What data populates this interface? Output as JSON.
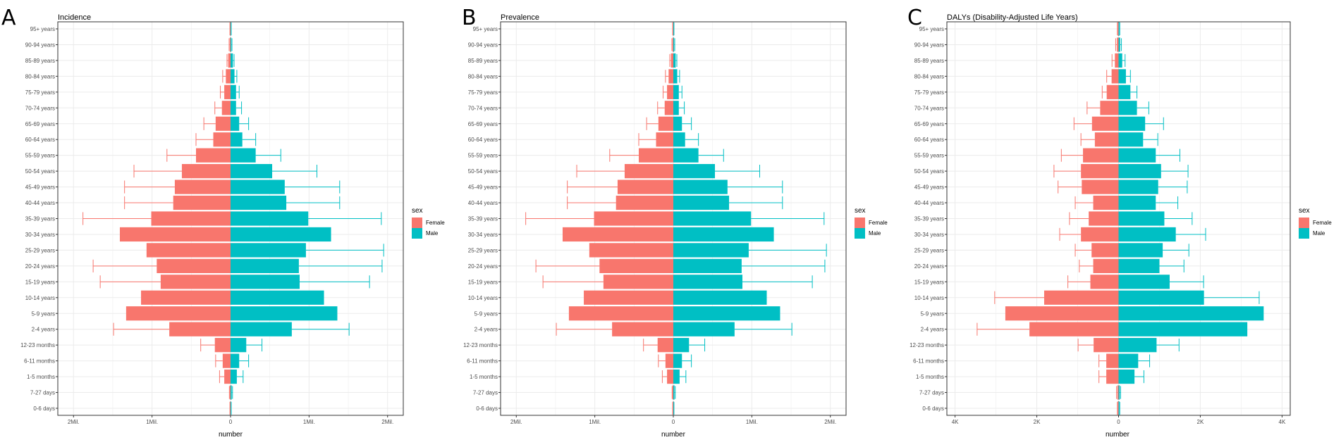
{
  "colors": {
    "female": "#F8766D",
    "male": "#00BFC4",
    "grid": "#ebebeb",
    "panel_border": "#333333"
  },
  "categories": [
    "95+ years",
    "90-94 years",
    "85-89 years",
    "80-84 years",
    "75-79 years",
    "70-74 years",
    "65-69 years",
    "60-64 years",
    "55-59 years",
    "50-54 years",
    "45-49 years",
    "40-44 years",
    "35-39 years",
    "30-34 years",
    "25-29 years",
    "20-24 years",
    "15-19 years",
    "10-14 years",
    "5-9 years",
    "2-4 years",
    "12-23 months",
    "6-11 months",
    "1-5 months",
    "7-27 days",
    "0-6 days"
  ],
  "chart_data": [
    {
      "type": "bar",
      "orientation": "horizontal-pyramid",
      "panel": "A",
      "title": "Incidence",
      "xlabel": "number",
      "xlim": [
        -2200000,
        2200000
      ],
      "xticks": [
        -2000000,
        -1000000,
        0,
        1000000,
        2000000
      ],
      "xtick_labels": [
        "2Mil.",
        "1Mil.",
        "0",
        "1Mil.",
        "2Mil."
      ],
      "legend_title": "sex",
      "legend_labels": [
        "Female",
        "Male"
      ],
      "series": [
        {
          "name": "Female",
          "values": [
            5000,
            10000,
            30000,
            60000,
            80000,
            110000,
            190000,
            220000,
            440000,
            620000,
            710000,
            730000,
            1010000,
            1410000,
            1070000,
            940000,
            890000,
            1140000,
            1330000,
            780000,
            200000,
            100000,
            80000,
            10000,
            5000
          ],
          "upper": [
            8000,
            18000,
            45000,
            100000,
            130000,
            200000,
            340000,
            440000,
            810000,
            1230000,
            1350000,
            1350000,
            1880000,
            1410000,
            1070000,
            1750000,
            1660000,
            1140000,
            1330000,
            1490000,
            380000,
            190000,
            140000,
            15000,
            8000
          ]
        },
        {
          "name": "Male",
          "values": [
            5000,
            10000,
            30000,
            50000,
            70000,
            70000,
            110000,
            150000,
            320000,
            530000,
            690000,
            710000,
            990000,
            1280000,
            960000,
            870000,
            880000,
            1190000,
            1360000,
            780000,
            200000,
            110000,
            80000,
            15000,
            5000
          ],
          "upper": [
            8000,
            18000,
            45000,
            80000,
            110000,
            140000,
            230000,
            320000,
            640000,
            1100000,
            1390000,
            1390000,
            1920000,
            1280000,
            1950000,
            1930000,
            1770000,
            1190000,
            1360000,
            1510000,
            400000,
            230000,
            160000,
            25000,
            8000
          ]
        }
      ]
    },
    {
      "type": "bar",
      "orientation": "horizontal-pyramid",
      "panel": "B",
      "title": "Prevalence",
      "xlabel": "number",
      "xlim": [
        -2200000,
        2200000
      ],
      "xticks": [
        -2000000,
        -1000000,
        0,
        1000000,
        2000000
      ],
      "xtick_labels": [
        "2Mil.",
        "1Mil.",
        "0",
        "1Mil.",
        "2Mil."
      ],
      "legend_title": "sex",
      "legend_labels": [
        "Female",
        "Male"
      ],
      "series": [
        {
          "name": "Female",
          "values": [
            5000,
            10000,
            30000,
            60000,
            80000,
            110000,
            190000,
            220000,
            440000,
            620000,
            710000,
            730000,
            1010000,
            1410000,
            1070000,
            940000,
            890000,
            1140000,
            1330000,
            780000,
            200000,
            100000,
            80000,
            10000,
            5000
          ],
          "upper": [
            8000,
            18000,
            45000,
            100000,
            130000,
            200000,
            340000,
            440000,
            810000,
            1230000,
            1350000,
            1350000,
            1880000,
            1410000,
            1070000,
            1750000,
            1660000,
            1140000,
            1330000,
            1490000,
            380000,
            190000,
            140000,
            15000,
            8000
          ]
        },
        {
          "name": "Male",
          "values": [
            5000,
            10000,
            30000,
            50000,
            70000,
            70000,
            110000,
            150000,
            320000,
            530000,
            690000,
            710000,
            990000,
            1280000,
            960000,
            870000,
            880000,
            1190000,
            1360000,
            780000,
            200000,
            110000,
            80000,
            15000,
            5000
          ],
          "upper": [
            8000,
            18000,
            45000,
            80000,
            110000,
            140000,
            230000,
            320000,
            640000,
            1100000,
            1390000,
            1390000,
            1920000,
            1280000,
            1950000,
            1930000,
            1770000,
            1190000,
            1360000,
            1510000,
            400000,
            230000,
            160000,
            25000,
            8000
          ]
        }
      ]
    },
    {
      "type": "bar",
      "orientation": "horizontal-pyramid",
      "panel": "C",
      "title": "DALYs (Disability-Adjusted Life Years)",
      "xlabel": "number",
      "xlim": [
        -4200,
        4200
      ],
      "xticks": [
        -4000,
        -2000,
        0,
        2000,
        4000
      ],
      "xtick_labels": [
        "4K",
        "2K",
        "0",
        "2K",
        "4K"
      ],
      "legend_title": "sex",
      "legend_labels": [
        "Female",
        "Male"
      ],
      "series": [
        {
          "name": "Female",
          "values": [
            20,
            40,
            90,
            170,
            290,
            450,
            650,
            580,
            870,
            920,
            900,
            620,
            730,
            920,
            660,
            620,
            690,
            1820,
            2770,
            2180,
            610,
            300,
            300,
            30,
            20
          ],
          "upper": [
            30,
            70,
            160,
            290,
            400,
            770,
            1090,
            920,
            1400,
            1580,
            1480,
            1060,
            1200,
            1440,
            1060,
            960,
            1240,
            3030,
            2770,
            3460,
            990,
            480,
            480,
            50,
            30
          ]
        },
        {
          "name": "Male",
          "values": [
            20,
            40,
            90,
            180,
            290,
            450,
            650,
            600,
            910,
            1040,
            970,
            910,
            1120,
            1400,
            1080,
            1000,
            1250,
            2090,
            3550,
            3150,
            930,
            480,
            390,
            30,
            20
          ],
          "upper": [
            30,
            70,
            160,
            290,
            450,
            740,
            1100,
            960,
            1500,
            1700,
            1680,
            1450,
            1800,
            2130,
            1720,
            1600,
            2080,
            3440,
            3550,
            3150,
            1480,
            760,
            620,
            50,
            30
          ]
        }
      ]
    }
  ]
}
